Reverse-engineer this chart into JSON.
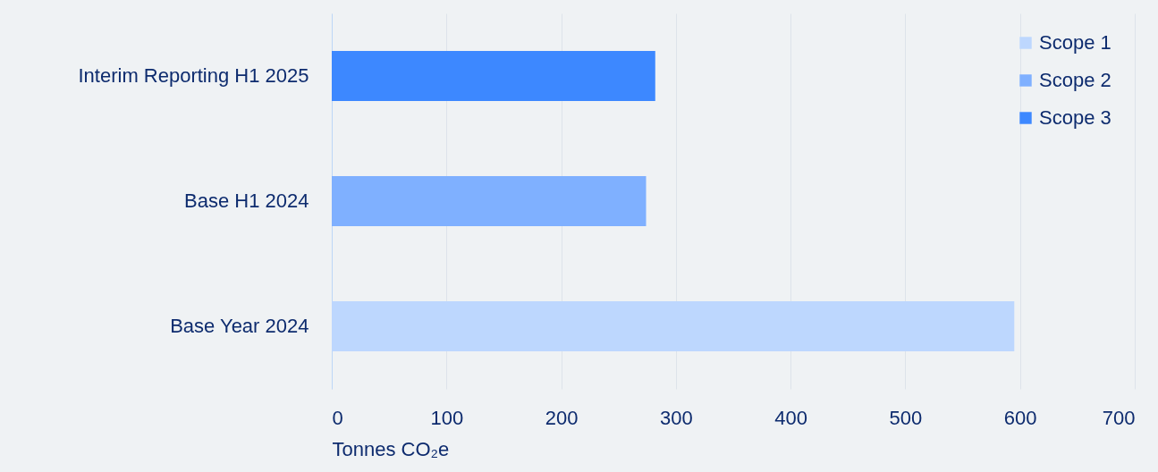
{
  "chart_data": {
    "type": "bar",
    "orientation": "horizontal",
    "categories": [
      "Interim Reporting H1 2025",
      "Base H1 2024",
      "Base Year 2024"
    ],
    "series": [
      {
        "name": "Scope 1",
        "color": "#bdd7fe",
        "values": [
          null,
          null,
          595
        ]
      },
      {
        "name": "Scope 2",
        "color": "#7fb0ff",
        "values": [
          null,
          274,
          null
        ]
      },
      {
        "name": "Scope 3",
        "color": "#3d88ff",
        "values": [
          282,
          null,
          null
        ]
      }
    ],
    "xlabel": "Tonnes CO₂e",
    "xlim": [
      0,
      700
    ],
    "xticks": [
      0,
      100,
      200,
      300,
      400,
      500,
      600,
      700
    ],
    "grid": "x",
    "legend": "top right"
  }
}
